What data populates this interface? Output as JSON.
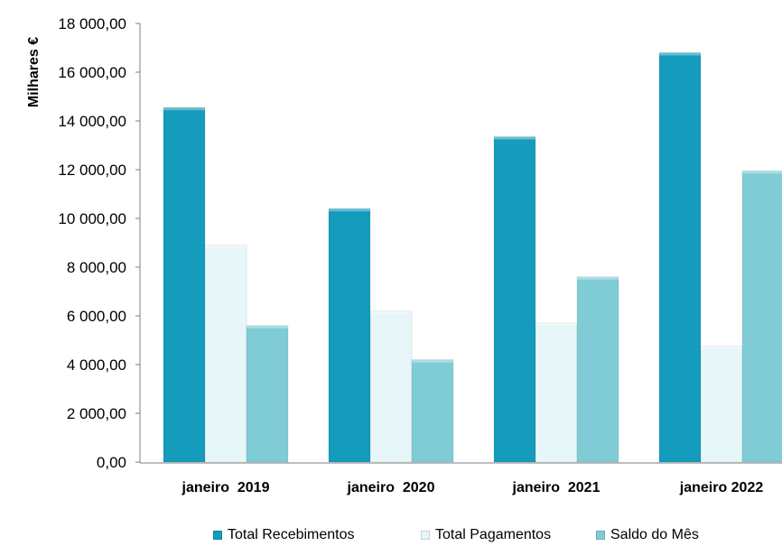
{
  "chart_data": {
    "type": "bar",
    "ylabel": "Milhares €",
    "categories": [
      "janeiro  2019",
      "janeiro  2020",
      "janeiro  2021",
      "janeiro 2022"
    ],
    "y_ticks": [
      "0,00",
      "2 000,00",
      "4 000,00",
      "6 000,00",
      "8 000,00",
      "10 000,00",
      "12 000,00",
      "14 000,00",
      "16 000,00",
      "18 000,00"
    ],
    "ylim": [
      0,
      18000
    ],
    "series": [
      {
        "name": "Total Recebimentos",
        "color": "#159cbc",
        "values": [
          14550,
          10400,
          13350,
          16800
        ]
      },
      {
        "name": "Total Pagamentos",
        "color": "#e7f6f8",
        "values": [
          8900,
          6200,
          5700,
          4750
        ]
      },
      {
        "name": "Saldo do Mês",
        "color": "#7fccd6",
        "values": [
          5600,
          4200,
          7600,
          11950
        ]
      }
    ],
    "legend_position": "bottom",
    "grid": false
  }
}
